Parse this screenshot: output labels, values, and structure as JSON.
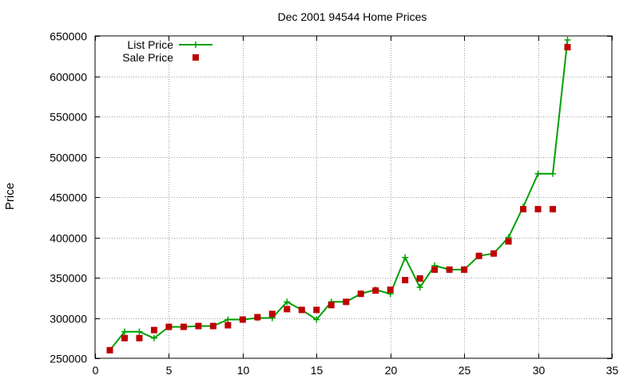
{
  "chart_data": {
    "type": "line",
    "title": "Dec 2001 94544 Home Prices",
    "xlabel": "",
    "ylabel": "Price",
    "xlim": [
      0,
      35
    ],
    "ylim": [
      250000,
      650000
    ],
    "x_ticks": [
      0,
      5,
      10,
      15,
      20,
      25,
      30,
      35
    ],
    "y_ticks": [
      250000,
      300000,
      350000,
      400000,
      450000,
      500000,
      550000,
      600000,
      650000
    ],
    "grid": true,
    "legend_position": "top-left",
    "series": [
      {
        "name": "List Price",
        "style": "lines+plus-points",
        "color": "#00a000",
        "x": [
          1,
          2,
          3,
          4,
          5,
          6,
          7,
          8,
          9,
          10,
          11,
          12,
          13,
          14,
          15,
          16,
          17,
          18,
          19,
          20,
          21,
          22,
          23,
          24,
          25,
          26,
          27,
          28,
          29,
          30,
          31,
          32
        ],
        "values": [
          260000,
          283000,
          283000,
          275000,
          289000,
          289000,
          290000,
          290000,
          298000,
          298000,
          300000,
          300000,
          320000,
          310000,
          298000,
          320000,
          320000,
          330000,
          335000,
          330000,
          375000,
          338000,
          365000,
          360000,
          360000,
          377000,
          380000,
          400000,
          438000,
          479000,
          479000,
          645000
        ]
      },
      {
        "name": "Sale Price",
        "style": "filled-squares",
        "color": "#c00000",
        "x": [
          1,
          2,
          3,
          4,
          5,
          6,
          7,
          8,
          9,
          10,
          11,
          12,
          13,
          14,
          15,
          16,
          17,
          18,
          19,
          20,
          21,
          22,
          23,
          24,
          25,
          26,
          27,
          28,
          29,
          30,
          31,
          32
        ],
        "values": [
          260000,
          275000,
          275000,
          285000,
          289000,
          289000,
          290000,
          290000,
          291000,
          298000,
          301000,
          305000,
          311000,
          310000,
          310000,
          316000,
          320000,
          330000,
          334000,
          335000,
          347000,
          349000,
          360000,
          360000,
          360000,
          377000,
          380000,
          395000,
          435000,
          435000,
          435000,
          636000
        ]
      }
    ]
  }
}
